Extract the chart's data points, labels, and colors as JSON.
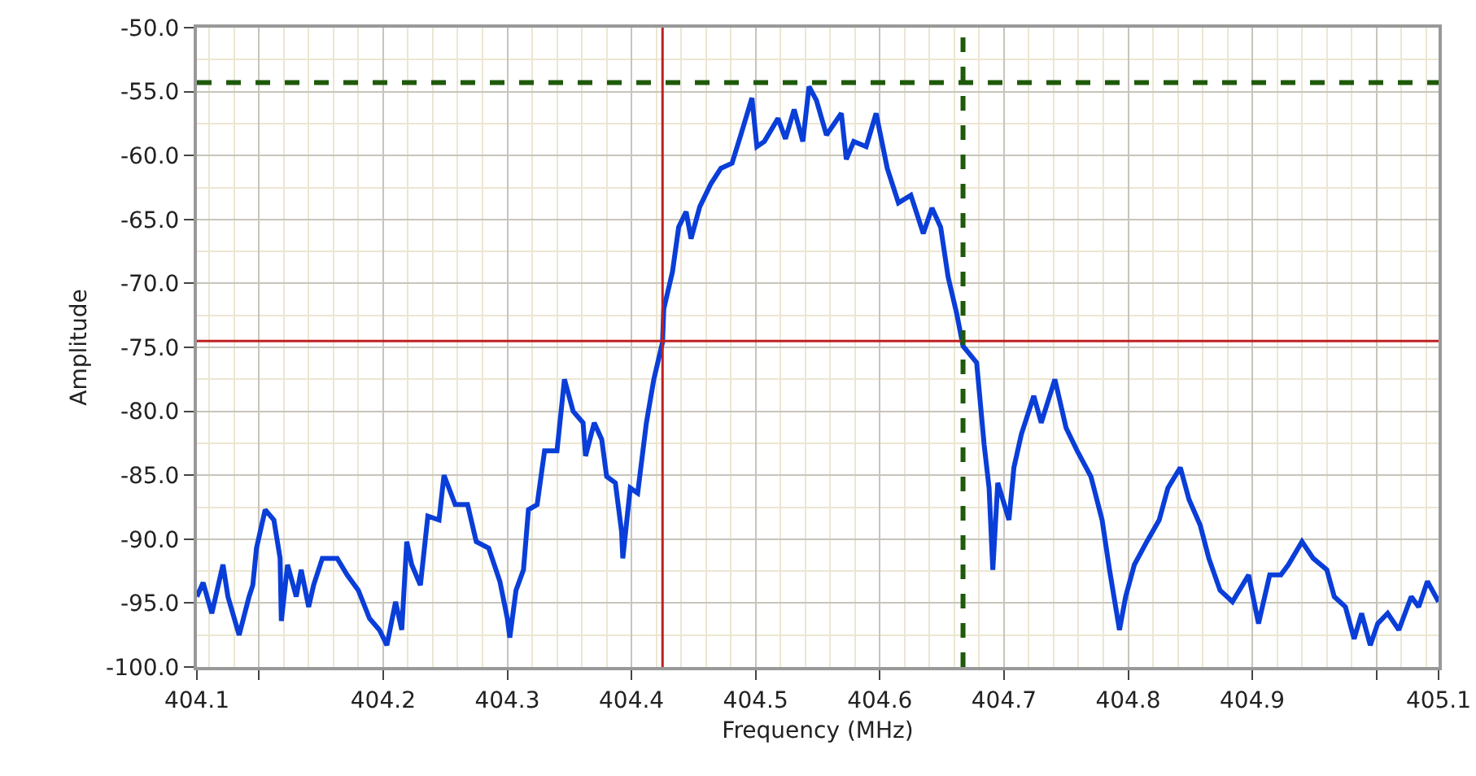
{
  "chart_data": {
    "type": "line",
    "xlabel": "Frequency (MHz)",
    "ylabel": "Amplitude",
    "xlim": [
      404.05,
      405.05
    ],
    "xticks": [
      {
        "value": 404.05,
        "label": "404.1"
      },
      {
        "value": 404.1,
        "label": null
      },
      404.2,
      404.3,
      404.4,
      404.5,
      404.6,
      404.7,
      404.8,
      404.9,
      {
        "value": 405.0,
        "label": null
      },
      {
        "value": 405.05,
        "label": "405.1"
      }
    ],
    "ylim": [
      -100,
      -50
    ],
    "yticks": [
      {
        "value": -100,
        "label": "-100.0"
      },
      {
        "value": -95,
        "label": "-95.0"
      },
      {
        "value": -90,
        "label": "-90.0"
      },
      {
        "value": -85,
        "label": "-85.0"
      },
      {
        "value": -80,
        "label": "-80.0"
      },
      {
        "value": -75,
        "label": "-75.0"
      },
      {
        "value": -70,
        "label": "-70.0"
      },
      {
        "value": -65,
        "label": "-65.0"
      },
      {
        "value": -60,
        "label": "-60.0"
      },
      {
        "value": -55,
        "label": "-55.0"
      },
      {
        "value": -50,
        "label": "-50.0"
      }
    ],
    "grid": true,
    "marker": "none",
    "line_style": "solid",
    "x": [
      404.05,
      404.055,
      404.062,
      404.071,
      404.075,
      404.084,
      404.092,
      404.095,
      404.098,
      404.105,
      404.112,
      404.117,
      404.118,
      404.123,
      404.13,
      404.134,
      404.14,
      404.144,
      404.151,
      404.163,
      404.171,
      404.18,
      404.189,
      404.197,
      404.203,
      404.21,
      404.215,
      404.219,
      404.223,
      404.23,
      404.236,
      404.245,
      404.249,
      404.258,
      404.268,
      404.275,
      404.285,
      404.294,
      404.3,
      404.302,
      404.307,
      404.313,
      404.317,
      404.324,
      404.33,
      404.34,
      404.346,
      404.353,
      404.361,
      404.363,
      404.37,
      404.376,
      404.38,
      404.387,
      404.392,
      404.393,
      404.399,
      404.405,
      404.412,
      404.418,
      404.425,
      404.426,
      404.433,
      404.438,
      404.444,
      404.448,
      404.455,
      404.464,
      404.472,
      404.481,
      404.488,
      404.497,
      404.501,
      404.507,
      404.518,
      404.524,
      404.531,
      404.538,
      404.543,
      404.549,
      404.557,
      404.569,
      404.573,
      404.579,
      404.589,
      404.597,
      404.606,
      404.615,
      404.625,
      404.635,
      404.642,
      404.649,
      404.655,
      404.662,
      404.667,
      404.678,
      404.684,
      404.688,
      404.691,
      404.695,
      404.704,
      404.708,
      404.714,
      404.724,
      404.73,
      404.741,
      404.75,
      404.759,
      404.77,
      404.779,
      404.785,
      404.793,
      404.798,
      404.805,
      404.815,
      404.825,
      404.832,
      404.842,
      404.849,
      404.858,
      404.865,
      404.874,
      404.884,
      404.897,
      404.905,
      404.914,
      404.923,
      404.929,
      404.94,
      404.949,
      404.96,
      404.966,
      404.975,
      404.982,
      404.988,
      404.995,
      405.001,
      405.009,
      405.018,
      405.028,
      405.034,
      405.041,
      405.05
    ],
    "series": [
      {
        "color": "#0a3ed8",
        "values": [
          -94.5,
          -93.4,
          -95.8,
          -92.0,
          -94.5,
          -97.5,
          -94.5,
          -93.6,
          -90.7,
          -87.7,
          -88.5,
          -91.5,
          -96.4,
          -92.0,
          -94.5,
          -92.4,
          -95.3,
          -93.6,
          -91.5,
          -91.5,
          -92.8,
          -94.0,
          -96.2,
          -97.1,
          -98.3,
          -94.9,
          -97.1,
          -90.2,
          -92.0,
          -93.6,
          -88.2,
          -88.5,
          -85.0,
          -87.3,
          -87.3,
          -90.2,
          -90.7,
          -93.3,
          -96.2,
          -97.7,
          -94.0,
          -92.4,
          -87.7,
          -87.3,
          -83.1,
          -83.1,
          -77.5,
          -80.0,
          -80.9,
          -83.5,
          -80.9,
          -82.2,
          -85.1,
          -85.6,
          -89.4,
          -91.5,
          -86.0,
          -86.4,
          -80.9,
          -77.5,
          -74.6,
          -72.0,
          -69.1,
          -65.6,
          -64.4,
          -66.5,
          -64.0,
          -62.2,
          -61.0,
          -60.6,
          -58.4,
          -55.5,
          -59.3,
          -58.9,
          -57.1,
          -58.7,
          -56.4,
          -58.9,
          -54.6,
          -55.7,
          -58.4,
          -56.7,
          -60.3,
          -58.9,
          -59.3,
          -56.7,
          -61.0,
          -63.7,
          -63.1,
          -66.1,
          -64.1,
          -65.6,
          -69.5,
          -72.4,
          -74.9,
          -76.2,
          -82.6,
          -86.0,
          -92.4,
          -85.6,
          -88.5,
          -84.4,
          -81.8,
          -78.8,
          -80.9,
          -77.5,
          -81.3,
          -83.1,
          -85.1,
          -88.5,
          -92.4,
          -97.1,
          -94.5,
          -92.0,
          -90.2,
          -88.5,
          -86.0,
          -84.4,
          -86.9,
          -88.9,
          -91.5,
          -94.0,
          -94.9,
          -92.8,
          -96.6,
          -92.8,
          -92.8,
          -92.0,
          -90.2,
          -91.5,
          -92.4,
          -94.5,
          -95.3,
          -97.8,
          -95.8,
          -98.3,
          -96.6,
          -95.8,
          -97.1,
          -94.5,
          -95.3,
          -93.3,
          -94.9
        ]
      }
    ],
    "ref_lines": [
      {
        "axis": "x",
        "value": 404.425,
        "color": "#c02020",
        "line_style": "solid"
      },
      {
        "axis": "y",
        "value": -74.5,
        "color": "#c02020",
        "line_style": "solid"
      },
      {
        "axis": "x",
        "value": 404.667,
        "color": "#1e5a0a",
        "line_style": "dashed"
      },
      {
        "axis": "y",
        "value": -54.3,
        "color": "#1e5a0a",
        "line_style": "dashed"
      }
    ]
  }
}
